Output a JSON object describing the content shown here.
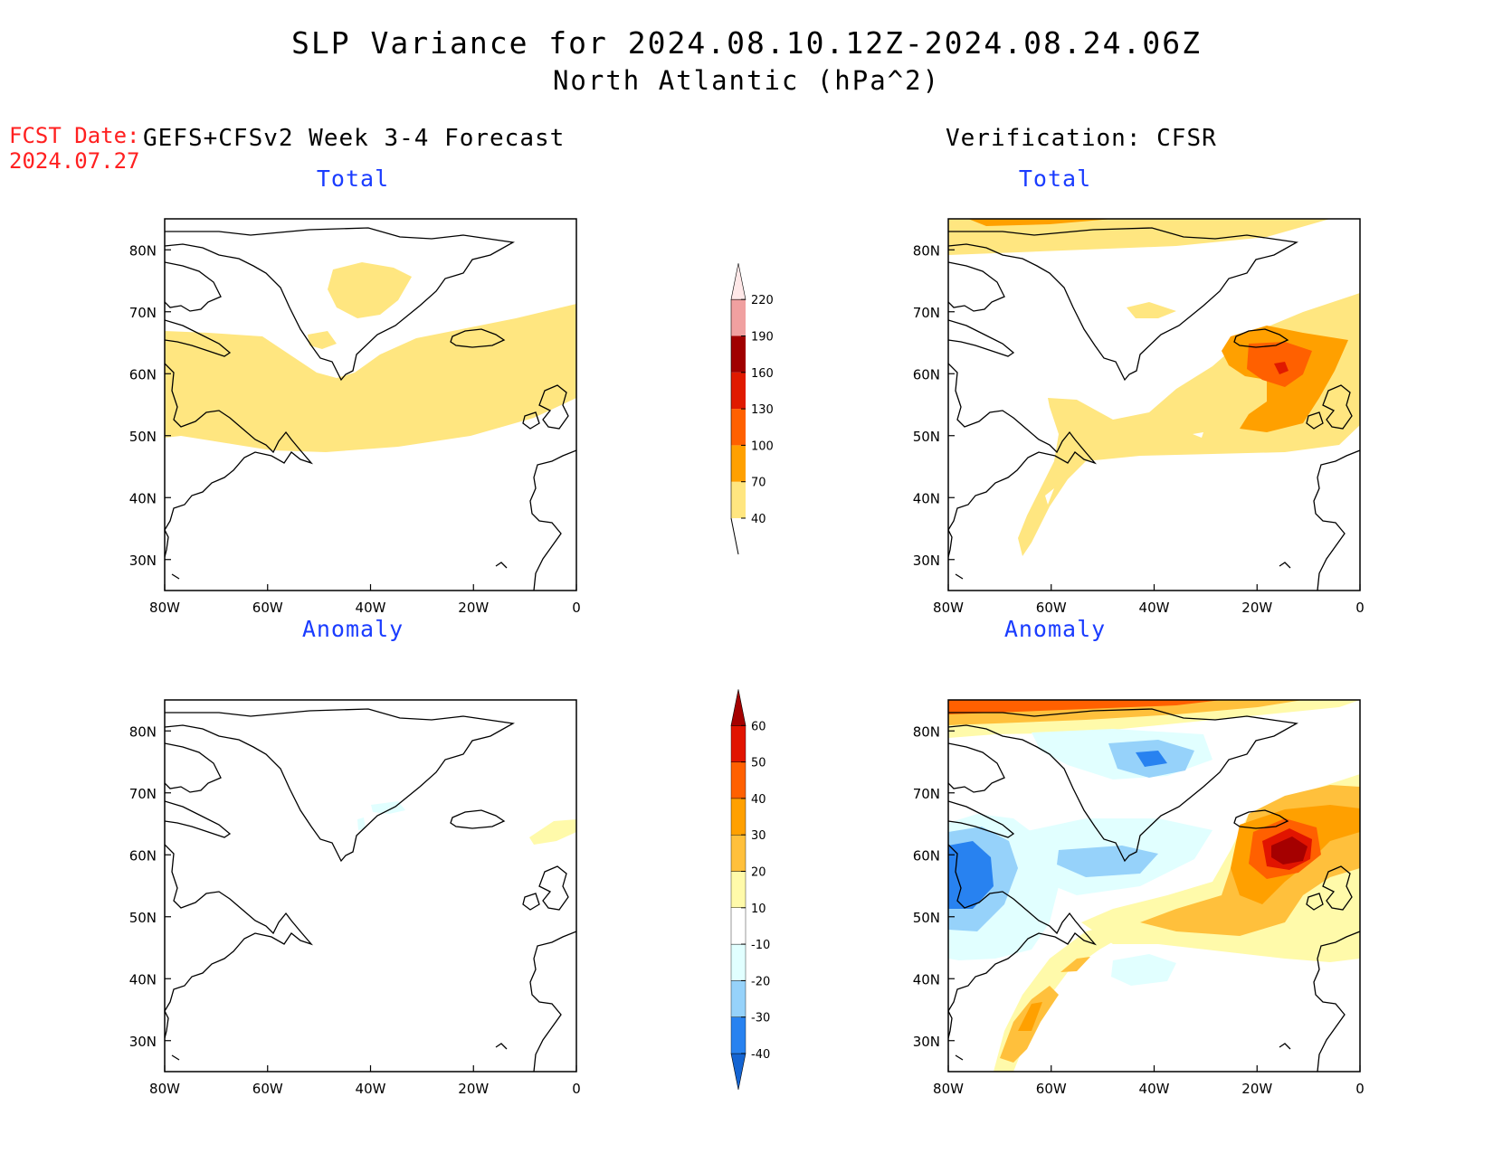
{
  "title": {
    "line1": "SLP Variance for 2024.08.10.12Z-2024.08.24.06Z",
    "line2": "North Atlantic (hPa^2)"
  },
  "fcst": {
    "label": "FCST Date:",
    "date": "2024.07.27"
  },
  "columns": {
    "left": "GEFS+CFSv2 Week 3-4 Forecast",
    "right": "Verification: CFSR"
  },
  "panels": {
    "forecast_total": "Total",
    "verif_total": "Total",
    "forecast_anomaly": "Anomaly",
    "verif_anomaly": "Anomaly"
  },
  "axes": {
    "lon_labels": [
      "80W",
      "60W",
      "40W",
      "20W",
      "0"
    ],
    "lat_labels": [
      "80N",
      "70N",
      "60N",
      "50N",
      "40N",
      "30N"
    ]
  },
  "colorbars": {
    "total": {
      "levels": [
        "40",
        "70",
        "100",
        "130",
        "160",
        "190",
        "220"
      ],
      "colors": [
        "#ffe680",
        "#ffa000",
        "#ff6000",
        "#e01a00",
        "#a00000",
        "#f0a0a0",
        "#ffe8e8"
      ]
    },
    "anomaly": {
      "levels": [
        "-40",
        "-30",
        "-20",
        "-10",
        "10",
        "20",
        "30",
        "40",
        "50",
        "60"
      ],
      "colors": [
        "#1464d2",
        "#2882f0",
        "#96d2fa",
        "#e1ffff",
        "#ffffff",
        "#fffaaa",
        "#ffc03c",
        "#ffa000",
        "#ff6000",
        "#e11400",
        "#a50000"
      ]
    }
  },
  "colors": {
    "title_blue": "#1a3cff",
    "fcst_red": "#ff2020"
  }
}
